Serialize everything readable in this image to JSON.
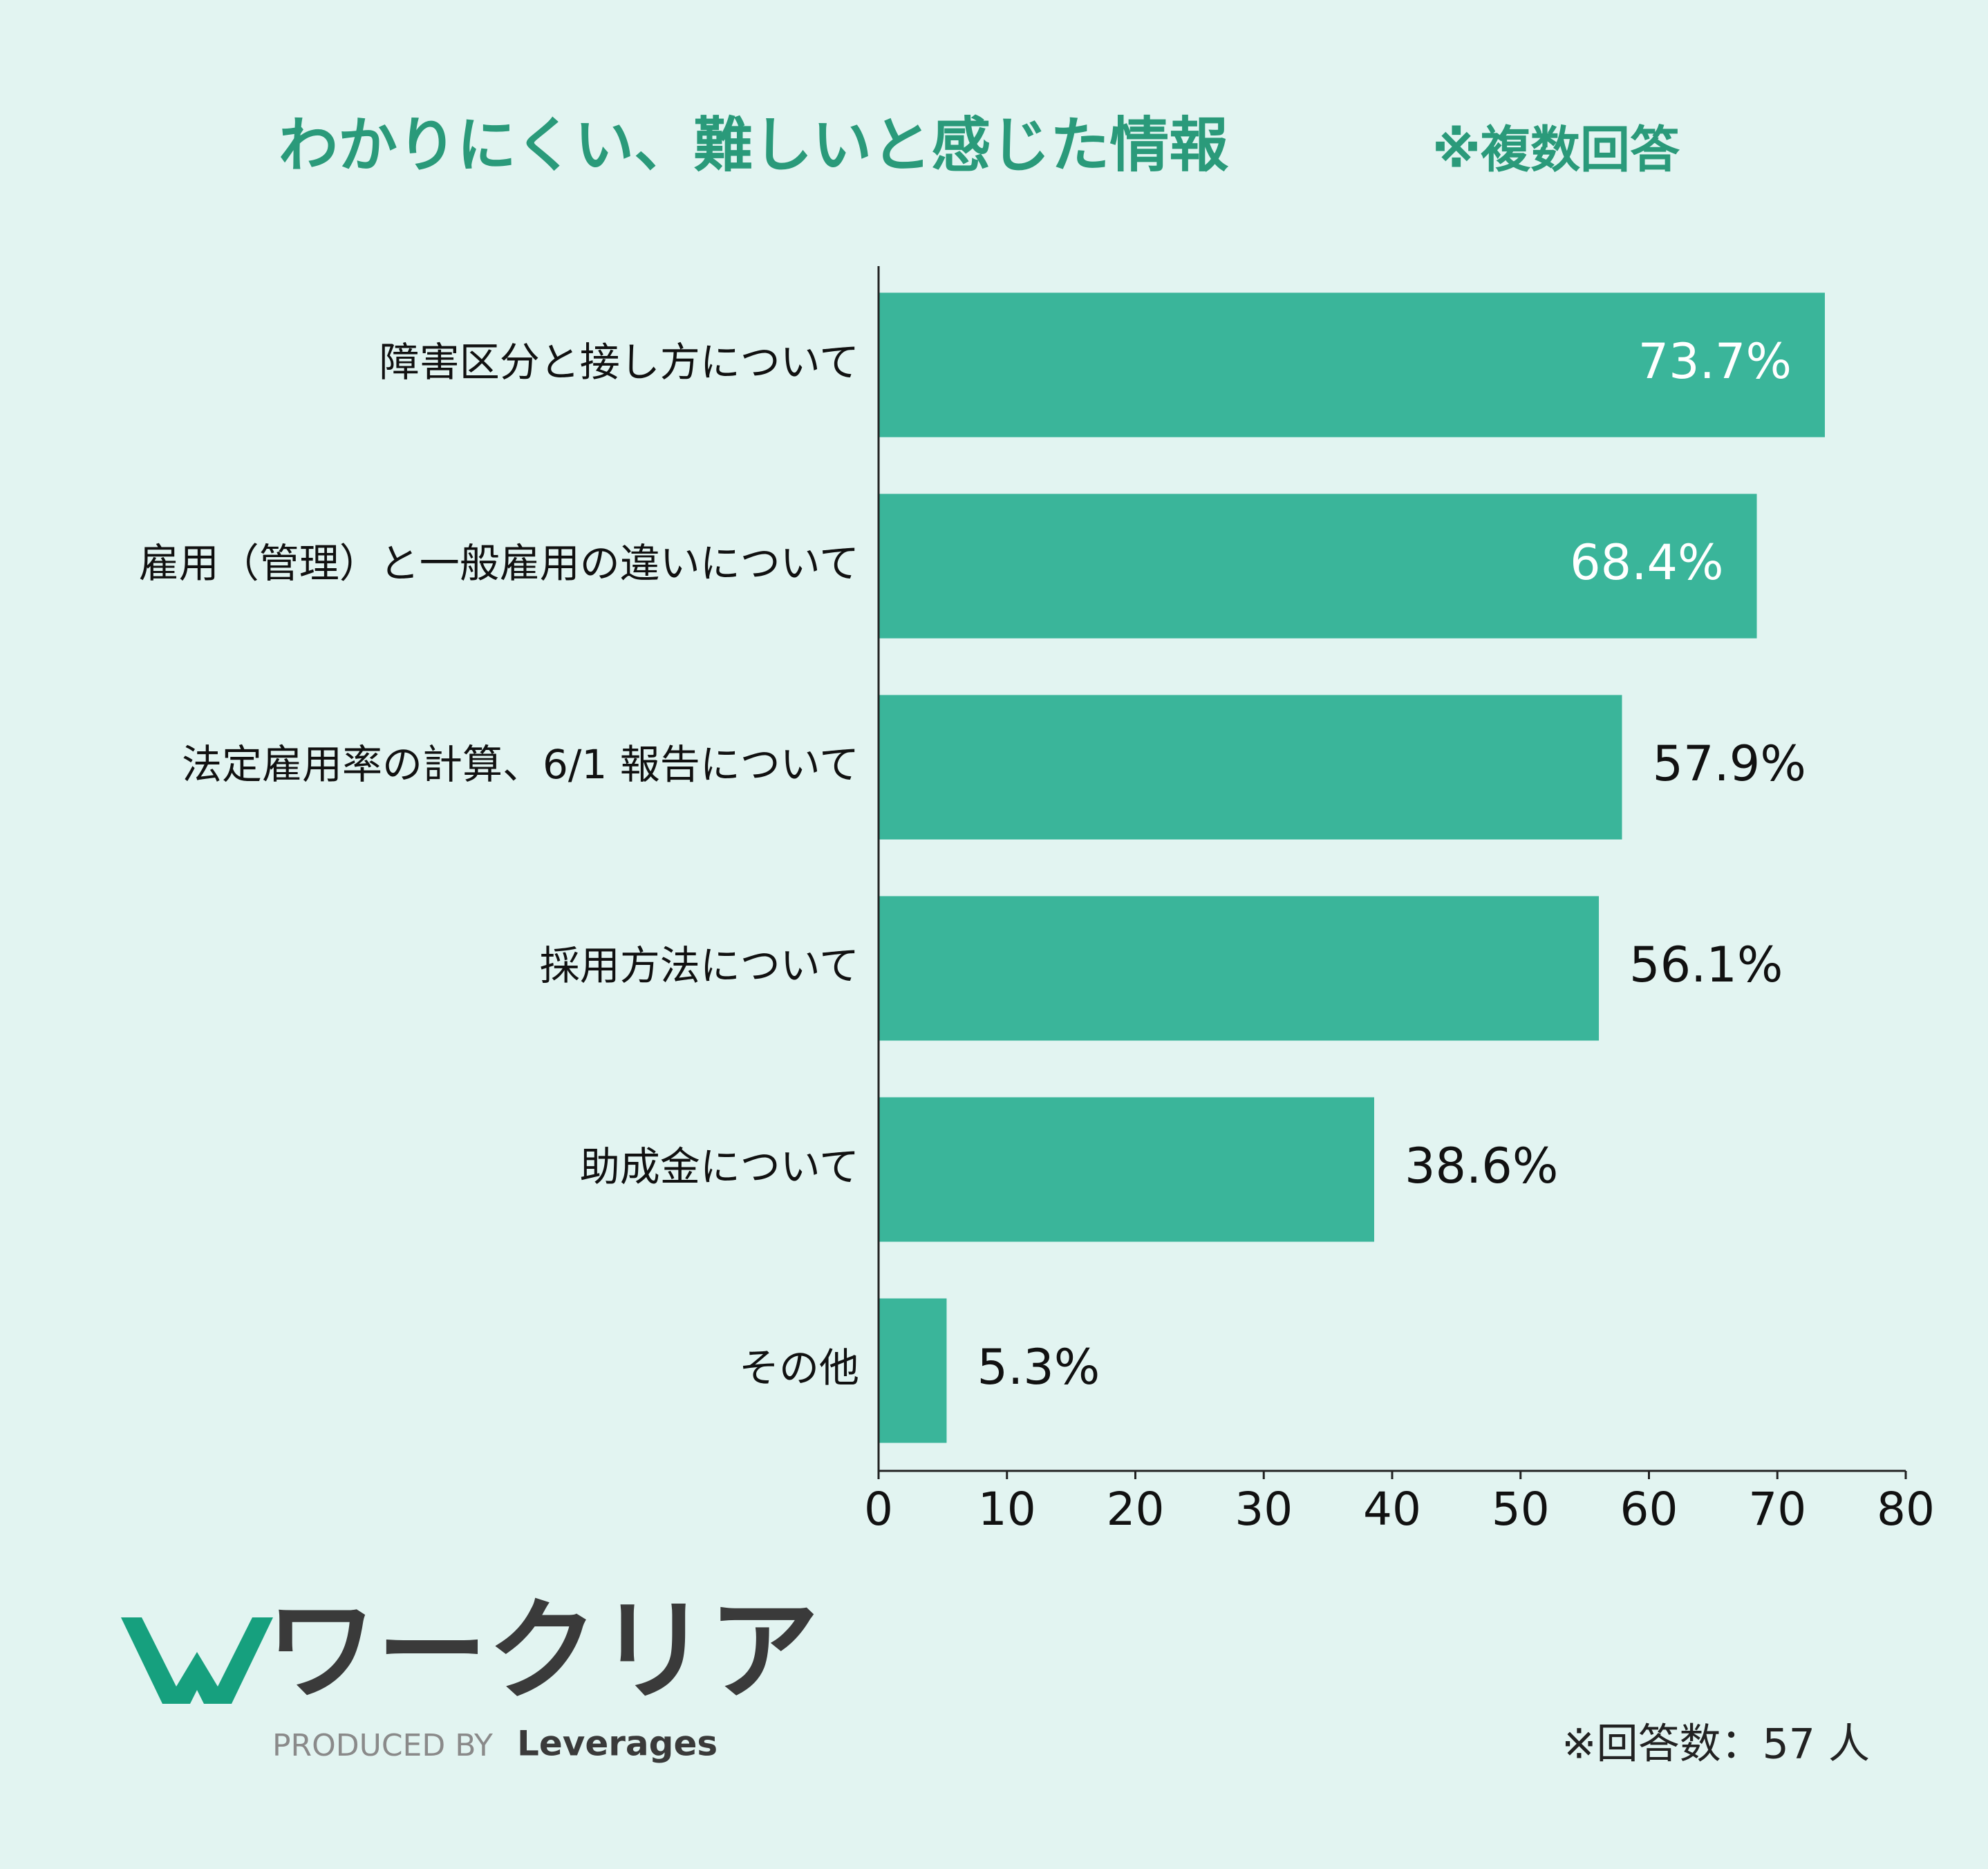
{
  "chart_data": {
    "type": "bar",
    "orientation": "horizontal",
    "title": "わかりにくい、難しいと感じた情報",
    "subtitle": "※複数回答",
    "categories": [
      "障害区分と接し方について",
      "雇用（管理）と一般雇用の違いについて",
      "法定雇用率の計算、6/1 報告について",
      "採用方法について",
      "助成金について",
      "その他"
    ],
    "values": [
      73.7,
      68.4,
      57.9,
      56.1,
      38.6,
      5.3
    ],
    "value_labels": [
      "73.7%",
      "68.4%",
      "57.9%",
      "56.1%",
      "38.6%",
      "5.3%"
    ],
    "color": "#3ab59a",
    "xlim": [
      0,
      80
    ],
    "xticks": [
      0,
      10,
      20,
      30,
      40,
      50,
      60,
      70,
      80
    ],
    "annotations": [
      "※回答数：57 人"
    ]
  },
  "logo": {
    "name": "ワークリア",
    "produced_by": "PRODUCED BY",
    "company": "Leverages"
  }
}
